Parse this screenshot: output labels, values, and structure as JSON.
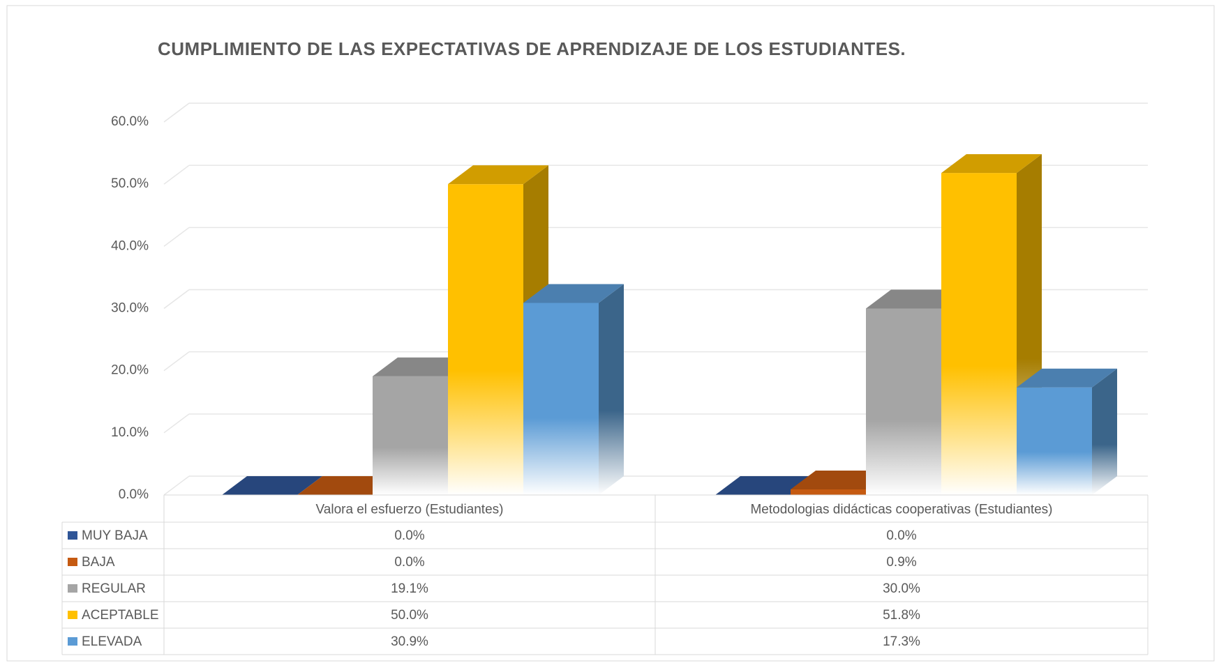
{
  "chart_data": {
    "type": "bar3d",
    "title": "CUMPLIMIENTO DE LAS EXPECTATIVAS DE APRENDIZAJE DE LOS ESTUDIANTES.",
    "categories": [
      "Valora el esfuerzo (Estudiantes)",
      "Metodologias didácticas cooperativas (Estudiantes)"
    ],
    "series": [
      {
        "name": "MUY BAJA",
        "color": "#2f5597",
        "values": [
          0,
          0
        ],
        "value_labels": [
          "0.0%",
          "0.0%"
        ]
      },
      {
        "name": "BAJA",
        "color": "#c55a11",
        "values": [
          0,
          0.9
        ],
        "value_labels": [
          "0.0%",
          "0.9%"
        ]
      },
      {
        "name": "REGULAR",
        "color": "#a5a5a5",
        "values": [
          19.1,
          30.0
        ],
        "value_labels": [
          "19.1%",
          "30.0%"
        ]
      },
      {
        "name": "ACEPTABLE",
        "color": "#ffc000",
        "values": [
          50.0,
          51.8
        ],
        "value_labels": [
          "50.0%",
          "51.8%"
        ]
      },
      {
        "name": "ELEVADA",
        "color": "#5b9bd5",
        "values": [
          30.9,
          17.3
        ],
        "value_labels": [
          "30.9%",
          "17.3%"
        ]
      }
    ],
    "ylim": [
      0,
      60
    ],
    "yticks": [
      {
        "value": 0,
        "label": "0.0%"
      },
      {
        "value": 10,
        "label": "10.0%"
      },
      {
        "value": 20,
        "label": "20.0%"
      },
      {
        "value": 30,
        "label": "30.0%"
      },
      {
        "value": 40,
        "label": "40.0%"
      },
      {
        "value": 50,
        "label": "50.0%"
      },
      {
        "value": 60,
        "label": "60.0%"
      }
    ],
    "grid": true,
    "legend": "table"
  }
}
